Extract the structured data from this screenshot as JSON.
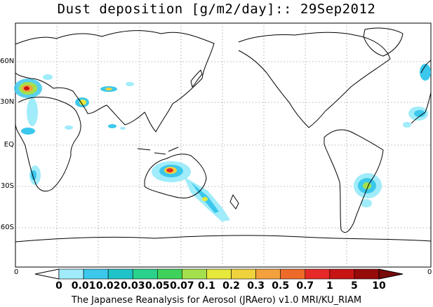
{
  "title": "Dust deposition [g/m2/day]:: 29Sep2012",
  "lat_labels": [
    "60N",
    "30N",
    "EQ",
    "30S",
    "60S"
  ],
  "colorbar": {
    "labels": [
      "0",
      "0.01",
      "0.02",
      "0.03",
      "0.05",
      "0.07",
      "0.1",
      "0.2",
      "0.3",
      "0.5",
      "0.7",
      "1",
      "5",
      "10"
    ],
    "colors": [
      "#ffffff",
      "#a0ecfa",
      "#3cc8ec",
      "#1ec4c8",
      "#2ad28c",
      "#3ed25a",
      "#a4e04c",
      "#e6e83c",
      "#f0d23c",
      "#f4a03c",
      "#ee6a28",
      "#e62828",
      "#c81414",
      "#960a0a",
      "#780a0a"
    ],
    "left_end_label": "0",
    "right_end_label": "0"
  },
  "credit": "The Japanese Reanalysis for Aerosol (JRAero) v1.0 MRI/KU_RIAM"
}
